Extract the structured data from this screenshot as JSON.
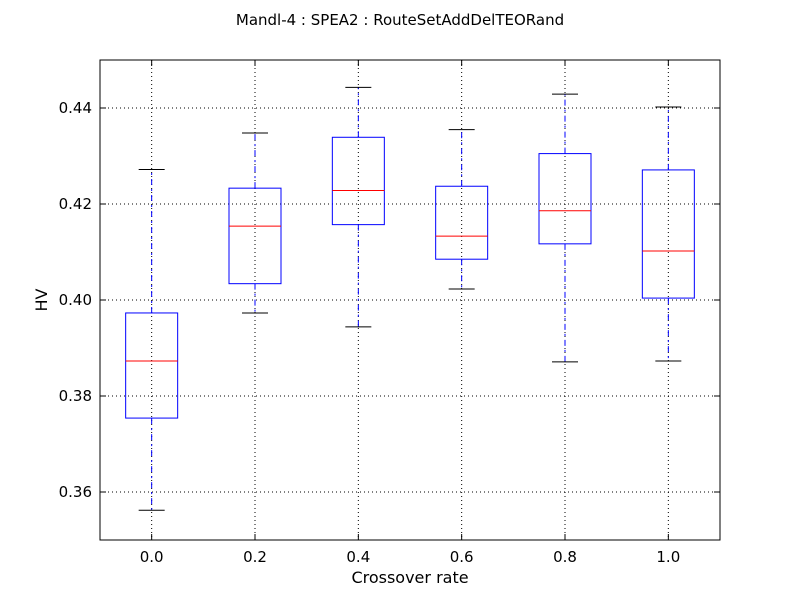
{
  "chart_data": {
    "type": "boxplot",
    "title": "Mandl-4 : SPEA2 : RouteSetAddDelTEORand",
    "xlabel": "Crossover rate",
    "ylabel": "HV",
    "ylim": [
      0.35,
      0.45
    ],
    "yticks": [
      0.36,
      0.38,
      0.4,
      0.42,
      0.44
    ],
    "ytick_labels": [
      "0.36",
      "0.38",
      "0.40",
      "0.42",
      "0.44"
    ],
    "grid": true,
    "categories": [
      "0.0",
      "0.2",
      "0.4",
      "0.6",
      "0.8",
      "1.0"
    ],
    "boxes": [
      {
        "whisker_low": 0.3562,
        "q1": 0.3754,
        "median": 0.3873,
        "q3": 0.3973,
        "whisker_high": 0.4272
      },
      {
        "whisker_low": 0.3973,
        "q1": 0.4034,
        "median": 0.4154,
        "q3": 0.4233,
        "whisker_high": 0.4348
      },
      {
        "whisker_low": 0.3944,
        "q1": 0.4157,
        "median": 0.4228,
        "q3": 0.4339,
        "whisker_high": 0.4443
      },
      {
        "whisker_low": 0.4023,
        "q1": 0.4085,
        "median": 0.4133,
        "q3": 0.4237,
        "whisker_high": 0.4355
      },
      {
        "whisker_low": 0.3871,
        "q1": 0.4117,
        "median": 0.4186,
        "q3": 0.4305,
        "whisker_high": 0.4429
      },
      {
        "whisker_low": 0.3873,
        "q1": 0.4004,
        "median": 0.4102,
        "q3": 0.4271,
        "whisker_high": 0.4402
      }
    ],
    "colors": {
      "box": "#0000ff",
      "median": "#ff0000",
      "whisker": "#0000ff",
      "cap": "#000000",
      "grid": "#000000"
    }
  }
}
